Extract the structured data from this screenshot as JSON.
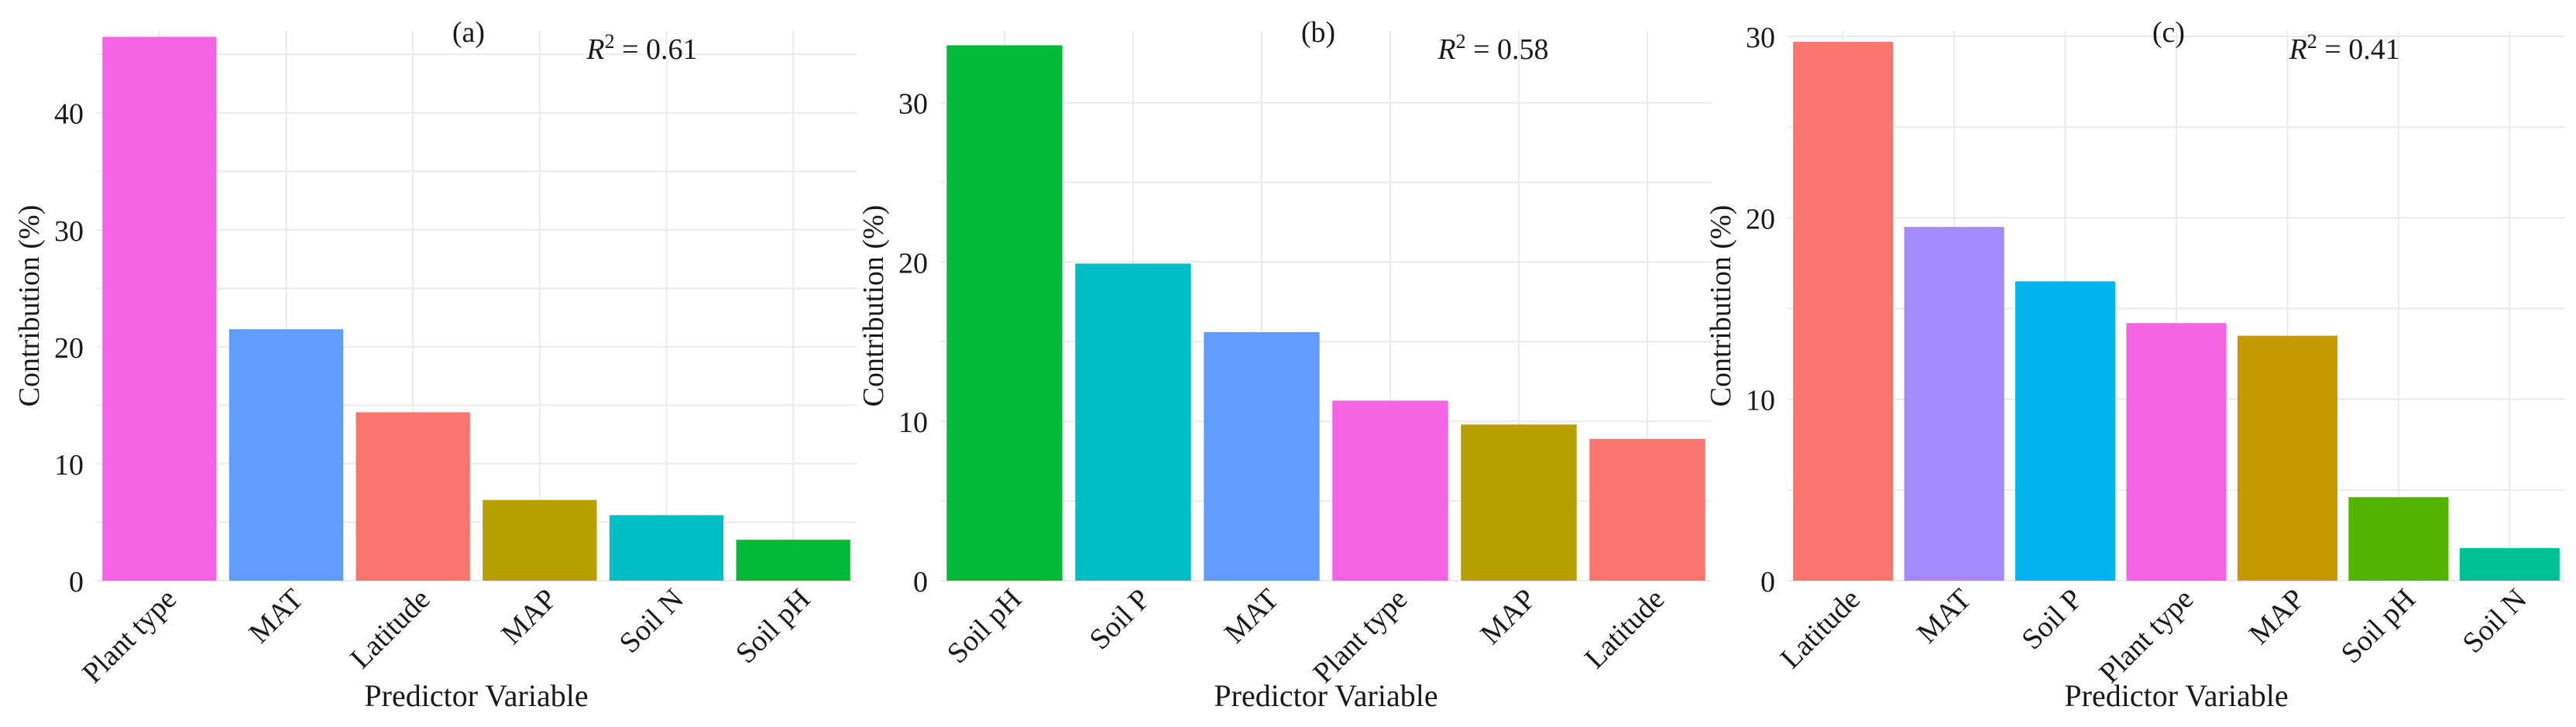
{
  "chart_data": [
    {
      "type": "bar",
      "panel_label": "(a)",
      "r2_symbol": "R",
      "r2_exp": "2",
      "r2_value": " = 0.61",
      "xlabel": "Predictor Variable",
      "ylabel": "Contribution (%)",
      "ylim": [
        0,
        47
      ],
      "yticks": [
        0,
        10,
        20,
        30,
        40
      ],
      "categories": [
        "Plant type",
        "MAT",
        "Latitude",
        "MAP",
        "Soil N",
        "Soil pH"
      ],
      "values": [
        46.5,
        21.5,
        14.4,
        6.9,
        5.6,
        3.5
      ],
      "colors": [
        "#F564E3",
        "#619CFF",
        "#F8766D",
        "#B79F00",
        "#00BFC4",
        "#00BA38"
      ]
    },
    {
      "type": "bar",
      "panel_label": "(b)",
      "r2_symbol": "R",
      "r2_exp": "2",
      "r2_value": " = 0.58",
      "xlabel": "Predictor Variable",
      "ylabel": "Contribution (%)",
      "ylim": [
        0,
        34.5
      ],
      "yticks": [
        0,
        10,
        20,
        30
      ],
      "categories": [
        "Soil pH",
        "Soil P",
        "MAT",
        "Plant type",
        "MAP",
        "Latitude"
      ],
      "values": [
        33.6,
        19.9,
        15.6,
        11.3,
        9.8,
        8.9
      ],
      "colors": [
        "#00BA38",
        "#00BFC4",
        "#619CFF",
        "#F564E3",
        "#B79F00",
        "#F8766D"
      ]
    },
    {
      "type": "bar",
      "panel_label": "(c)",
      "r2_symbol": "R",
      "r2_exp": "2",
      "r2_value": " = 0.41",
      "xlabel": "Predictor Variable",
      "ylabel": "Contribution (%)",
      "ylim": [
        0,
        30.3
      ],
      "yticks": [
        0,
        10,
        20,
        30
      ],
      "categories": [
        "Latitude",
        "MAT",
        "Soil P",
        "Plant type",
        "MAP",
        "Soil pH",
        "Soil N"
      ],
      "values": [
        29.7,
        19.5,
        16.5,
        14.2,
        13.5,
        4.6,
        1.8
      ],
      "colors": [
        "#F8766D",
        "#A58AFF",
        "#00B4EF",
        "#F564E3",
        "#C49A00",
        "#53B400",
        "#00C094"
      ]
    }
  ]
}
